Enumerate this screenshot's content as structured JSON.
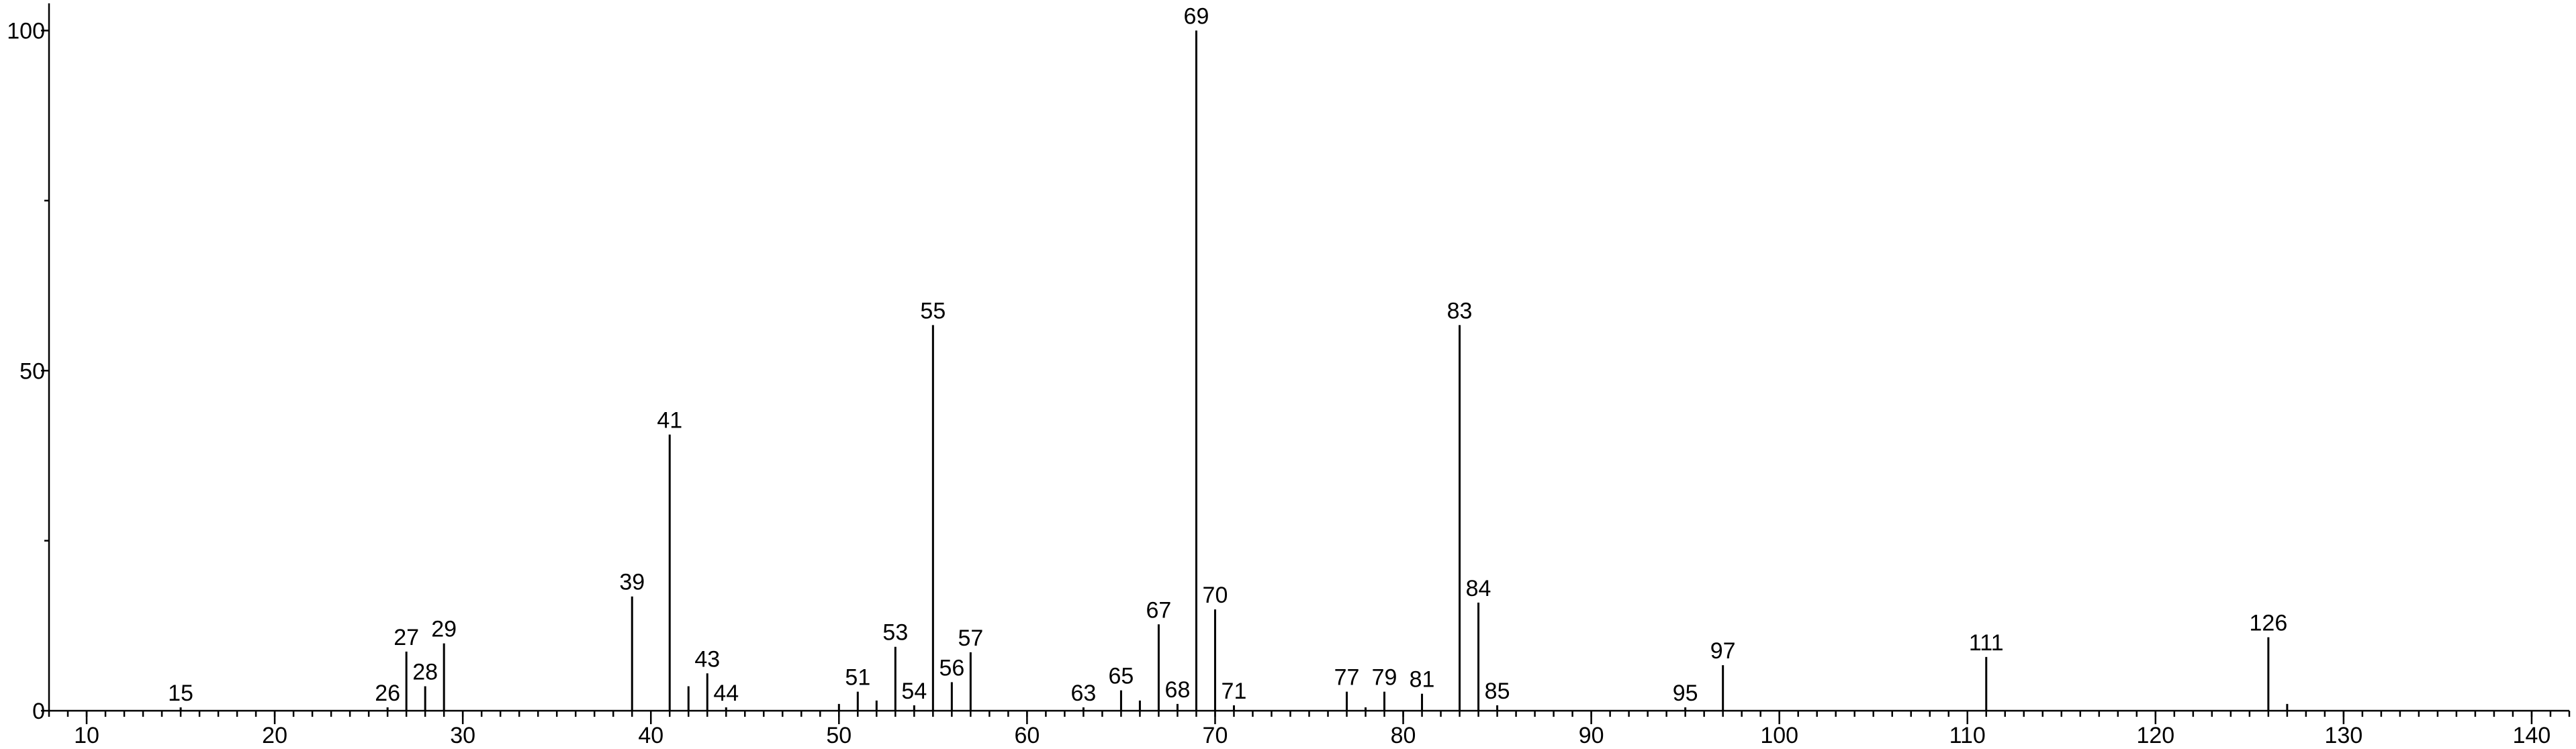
{
  "chart_data": {
    "type": "stem",
    "x": [
      15,
      26,
      27,
      28,
      29,
      39,
      41,
      42,
      43,
      44,
      50,
      51,
      52,
      53,
      54,
      55,
      56,
      57,
      63,
      65,
      66,
      67,
      68,
      69,
      70,
      71,
      77,
      78,
      79,
      81,
      83,
      84,
      85,
      95,
      97,
      111,
      126,
      127
    ],
    "values": [
      0.5,
      0.5,
      8.7,
      3.6,
      9.9,
      16.8,
      40.6,
      3.6,
      5.5,
      0.5,
      1,
      2.8,
      1.5,
      9.4,
      0.8,
      56.7,
      4.2,
      8.6,
      0.5,
      3,
      1.5,
      12.7,
      1,
      100,
      14.9,
      0.8,
      2.8,
      0.5,
      2.8,
      2.5,
      56.7,
      15.9,
      0.8,
      0.5,
      6.7,
      7.9,
      10.8,
      1
    ],
    "labeled": [
      true,
      true,
      true,
      true,
      true,
      true,
      true,
      false,
      true,
      true,
      false,
      true,
      false,
      true,
      true,
      true,
      true,
      true,
      true,
      true,
      false,
      true,
      true,
      true,
      true,
      true,
      true,
      false,
      true,
      true,
      true,
      true,
      true,
      true,
      true,
      true,
      true,
      false
    ],
    "color": "#000000",
    "xlim": [
      8,
      142
    ],
    "xticks": [
      10,
      20,
      30,
      40,
      50,
      60,
      70,
      80,
      90,
      100,
      110,
      120,
      130,
      140
    ],
    "xminor_step": 1,
    "ylim": [
      0,
      104
    ],
    "yticks": [
      0,
      50,
      100
    ],
    "yminor_ticks": [
      25,
      75
    ]
  }
}
